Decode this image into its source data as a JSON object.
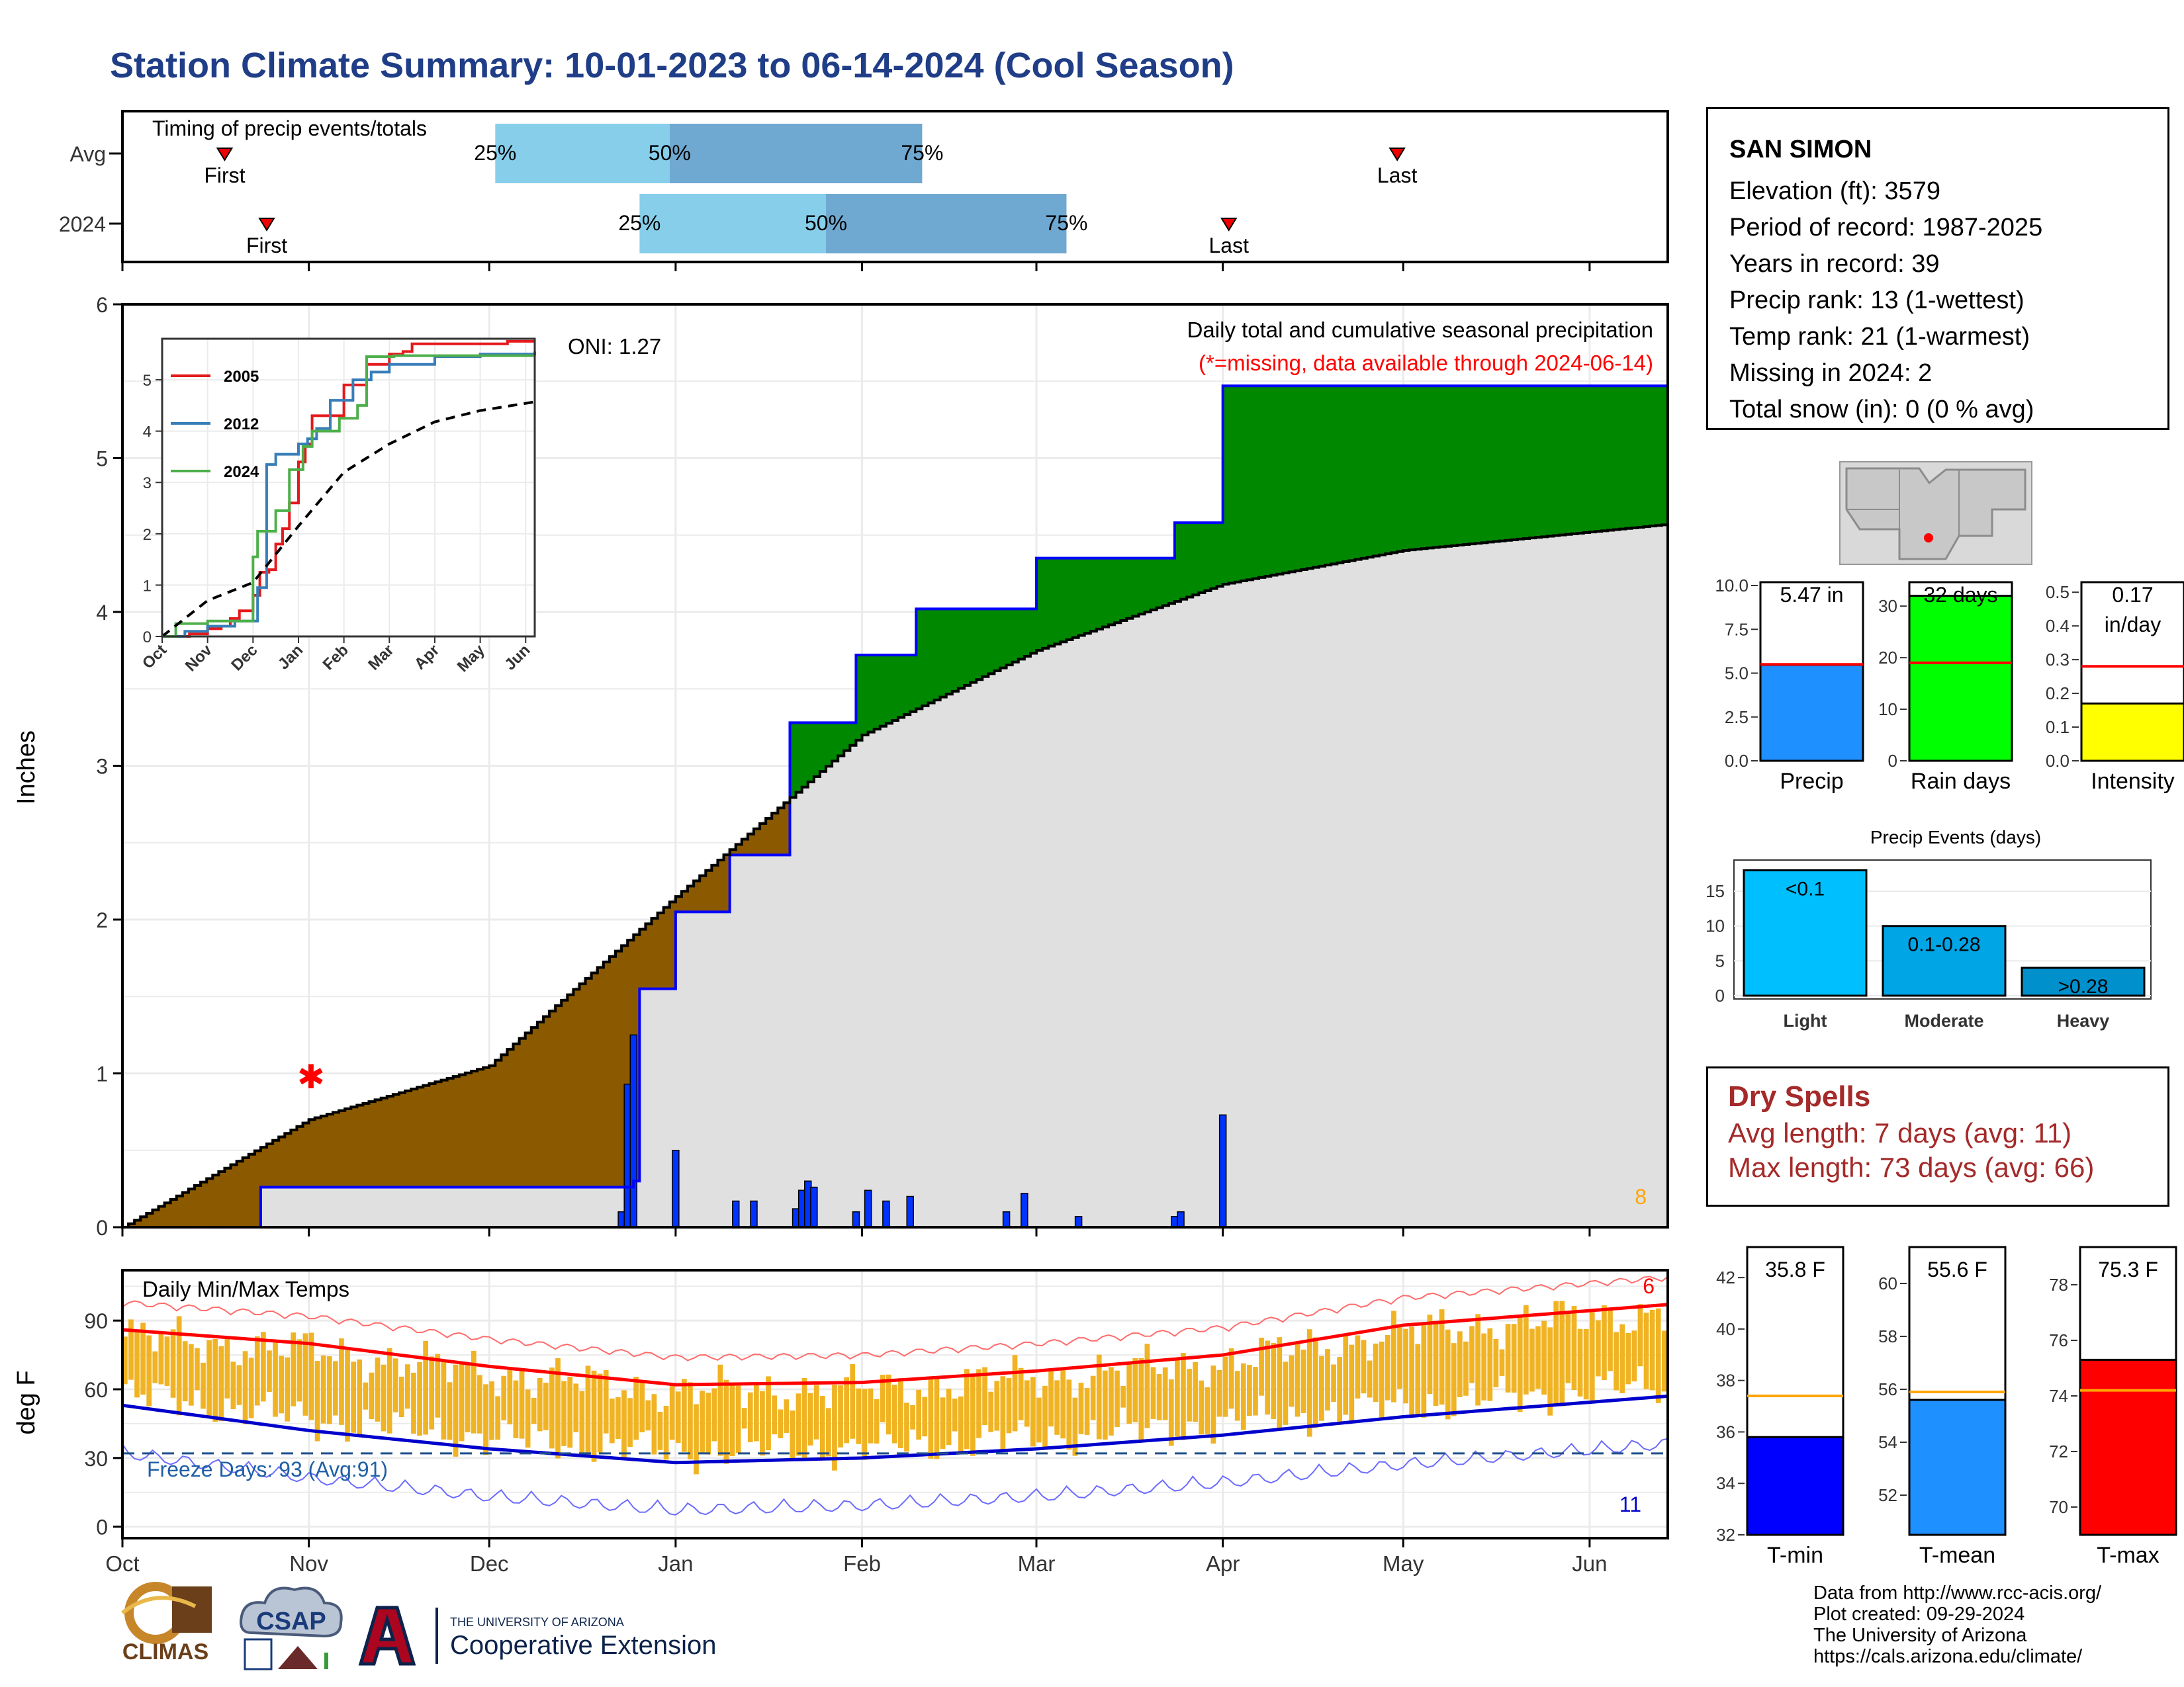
{
  "title": "Station Climate Summary: 10-01-2023 to 06-14-2024 (Cool Season)",
  "timing": {
    "label": "Timing of precip events/totals",
    "rows": [
      {
        "name": "Avg",
        "first": "2023-10-18",
        "last": "2024-04-30",
        "p25": "2023-12-02",
        "p50": "2023-12-31",
        "p75": "2024-02-11"
      },
      {
        "name": "2024",
        "first": "2023-10-25",
        "last": "2024-04-02",
        "p25": "2023-12-26",
        "p50": "2024-01-26",
        "p75": "2024-03-06"
      }
    ],
    "first_label": "First",
    "last_label": "Last",
    "pct_labels": [
      "25%",
      "50%",
      "75%"
    ]
  },
  "main": {
    "ylabel": "Inches",
    "title": "Daily total and cumulative seasonal precipitation",
    "missing_note": "(*=missing, data available through 2024-06-14)",
    "oni": "ONI: 1.27",
    "count_label": "8",
    "colors": {
      "above": "#008800",
      "below": "#8b5a00",
      "area": "#e0e0e0",
      "obs_line": "#0000ff",
      "avg_line": "#000000",
      "bars": "#0033ff"
    }
  },
  "inset": {
    "legend": [
      "2005",
      "2012",
      "2024"
    ],
    "colors": [
      "#e41a1c",
      "#377eb8",
      "#4daf4a"
    ]
  },
  "temps": {
    "ylabel": "deg F",
    "title": "Daily Min/Max Temps",
    "freeze": "Freeze Days: 93 (Avg:91)",
    "count_hi": "6",
    "count_lo": "11"
  },
  "x_axis": {
    "months": [
      "Oct",
      "Nov",
      "Dec",
      "Jan",
      "Feb",
      "Mar",
      "Apr",
      "May",
      "Jun"
    ]
  },
  "inset_axis": {
    "months": [
      "Oct",
      "Nov",
      "Dec",
      "Jan",
      "Feb",
      "Mar",
      "Apr",
      "May",
      "Jun"
    ]
  },
  "station": {
    "name": "SAN SIMON",
    "lines": [
      "Elevation (ft): 3579",
      "Period of record: 1987-2025",
      "Years in record: 39",
      "Precip rank: 13 (1-wettest)",
      "Temp rank: 21 (1-warmest)",
      "Missing in 2024: 2",
      "Total snow (in): 0 (0 % avg)"
    ]
  },
  "summary_bars": [
    {
      "label": "Precip",
      "value": 5.47,
      "avg": 5.5,
      "ymax": 10,
      "ticks": [
        "0.0",
        "2.5",
        "5.0",
        "7.5",
        "10.0"
      ],
      "text": "5.47 in",
      "color": "#1e90ff"
    },
    {
      "label": "Rain days",
      "value": 32,
      "avg": 19,
      "ymax": 34,
      "ticks": [
        "0",
        "10",
        "20",
        "30"
      ],
      "text": "32 days",
      "color": "#00ff00"
    },
    {
      "label": "Intensity",
      "value": 0.17,
      "avg": 0.28,
      "ymax": 0.52,
      "ticks": [
        "0.0",
        "0.1",
        "0.2",
        "0.3",
        "0.4",
        "0.5"
      ],
      "text": "0.17",
      "text2": "in/day",
      "color": "#ffff00"
    }
  ],
  "events": {
    "title": "Precip Events (days)",
    "categories": [
      "Light",
      "Moderate",
      "Heavy"
    ],
    "values": [
      18,
      10,
      4
    ],
    "labels": [
      "<0.1",
      "0.1-0.28",
      ">0.28"
    ],
    "colors": [
      "#00bfff",
      "#00a5e6",
      "#0090cc"
    ],
    "ticks": [
      "0",
      "5",
      "10",
      "15"
    ]
  },
  "dry": {
    "title": "Dry Spells",
    "avg": "Avg length: 7 days (avg: 11)",
    "max": "Max length: 73 days (avg: 66)"
  },
  "temp_bars": [
    {
      "label": "T-min",
      "value": 35.8,
      "avg": 37.4,
      "ymin": 32,
      "ymax": 42.8,
      "ticks": [
        "32",
        "34",
        "36",
        "38",
        "40",
        "42"
      ],
      "text": "35.8 F",
      "color": "#0000ff"
    },
    {
      "label": "T-mean",
      "value": 55.6,
      "avg": 55.9,
      "ymin": 50.5,
      "ymax": 61,
      "ticks": [
        "52",
        "54",
        "56",
        "58",
        "60"
      ],
      "text": "55.6 F",
      "color": "#1e90ff"
    },
    {
      "label": "T-max",
      "value": 75.3,
      "avg": 74.2,
      "ymin": 69,
      "ymax": 79,
      "ticks": [
        "70",
        "72",
        "74",
        "76",
        "78"
      ],
      "text": "75.3 F",
      "color": "#ff0000"
    }
  ],
  "credits": [
    "Data from http://www.rcc-acis.org/",
    "Plot created: 09-29-2024",
    "The University of Arizona",
    "https://cals.arizona.edu/climate/"
  ],
  "logos": {
    "climas": "CLIMAS",
    "csap": "CSAP",
    "ua_top": "THE UNIVERSITY OF ARIZONA",
    "ua_bottom": "Cooperative Extension"
  },
  "chart_data": [
    {
      "type": "area",
      "title": "Daily total and cumulative seasonal precipitation",
      "ylabel": "Inches",
      "ylim": [
        0,
        6
      ],
      "x_range": [
        "2023-10-01",
        "2024-06-14"
      ],
      "series": [
        {
          "name": "2024",
          "x": [
            "2023-10-01",
            "2023-10-24",
            "2023-12-25",
            "2023-12-26",
            "2024-01-01",
            "2024-01-10",
            "2024-01-20",
            "2024-01-31",
            "2024-02-10",
            "2024-03-01",
            "2024-03-24",
            "2024-04-01",
            "2024-06-14"
          ],
          "values": [
            0,
            0.26,
            0.3,
            1.55,
            2.05,
            2.42,
            3.28,
            3.72,
            4.02,
            4.35,
            4.58,
            5.47,
            5.47
          ]
        },
        {
          "x": [
            "2023-10-01",
            "2023-11-01",
            "2023-12-01",
            "2024-01-01",
            "2024-02-01",
            "2024-03-01",
            "2024-04-01",
            "2024-05-01",
            "2024-06-14"
          ],
          "values": [
            0,
            0.7,
            1.05,
            2.15,
            3.2,
            3.75,
            4.18,
            4.4,
            4.57
          ]
        }
      ],
      "daily_bars": {
        "x": [
          "2023-12-23",
          "2023-12-24",
          "2023-12-25",
          "2024-01-01",
          "2024-01-11",
          "2024-01-14",
          "2024-01-21",
          "2024-01-22",
          "2024-01-23",
          "2024-01-24",
          "2024-01-31",
          "2024-02-02",
          "2024-02-05",
          "2024-02-09",
          "2024-02-25",
          "2024-02-28",
          "2024-03-08",
          "2024-03-24",
          "2024-03-25",
          "2024-04-01"
        ],
        "values": [
          0.1,
          0.93,
          1.25,
          0.5,
          0.17,
          0.17,
          0.12,
          0.24,
          0.3,
          0.26,
          0.1,
          0.24,
          0.17,
          0.2,
          0.1,
          0.22,
          0.07,
          0.07,
          0.1,
          0.73
        ]
      }
    },
    {
      "type": "line",
      "title": "",
      "ylim": [
        0,
        5.8
      ],
      "x_range": [
        "Oct",
        "Jun"
      ],
      "series": [
        {
          "name": "2005",
          "x": [
            0,
            0.3,
            0.6,
            1.0,
            1.3,
            1.5,
            1.7,
            2.0,
            2.15,
            2.35,
            2.5,
            2.65,
            2.8,
            3.0,
            3.15,
            3.3,
            4.0,
            4.5,
            5.0,
            5.3,
            5.5,
            6.4,
            7.6,
            8.2
          ],
          "values": [
            0,
            0,
            0.05,
            0.15,
            0.2,
            0.35,
            0.5,
            0.8,
            1.25,
            1.3,
            1.8,
            2.1,
            2.6,
            3.4,
            3.75,
            4.3,
            4.9,
            5.3,
            5.5,
            5.55,
            5.7,
            5.7,
            5.75,
            5.75
          ]
        },
        {
          "name": "2012",
          "x": [
            0,
            0.5,
            1.0,
            1.6,
            2.1,
            2.3,
            2.5,
            2.8,
            3.0,
            3.2,
            3.4,
            3.7,
            4.2,
            4.6,
            5.0,
            6.0,
            7.0,
            8.2
          ],
          "values": [
            0,
            0.1,
            0.2,
            0.3,
            0.95,
            3.35,
            3.55,
            3.55,
            3.75,
            3.85,
            4.05,
            4.6,
            5.0,
            5.15,
            5.3,
            5.45,
            5.5,
            5.55
          ]
        },
        {
          "name": "2024",
          "x": [
            0,
            0.3,
            1.0,
            1.5,
            2.0,
            2.1,
            2.5,
            2.8,
            3.1,
            3.3,
            3.9,
            4.3,
            4.5,
            5.1,
            6.0,
            7.0,
            8.2
          ],
          "values": [
            0,
            0.25,
            0.3,
            0.3,
            1.55,
            2.05,
            2.45,
            3.25,
            3.7,
            4.0,
            4.25,
            4.5,
            5.45,
            5.47,
            5.47,
            5.47,
            5.47
          ]
        },
        {
          "x": [
            0,
            1,
            2,
            3,
            4,
            5,
            6,
            7,
            8.2
          ],
          "values": [
            0,
            0.7,
            1.05,
            2.15,
            3.2,
            3.75,
            4.18,
            4.4,
            4.57
          ]
        }
      ]
    },
    {
      "type": "bar",
      "title": "Daily Min/Max Temps",
      "ylabel": "deg F",
      "ylim": [
        -5,
        112
      ],
      "x_range": [
        "2023-10-01",
        "2024-06-14"
      ],
      "series": [
        {
          "x": [
            "2023-10-01",
            "2023-11-01",
            "2023-12-01",
            "2024-01-01",
            "2024-02-01",
            "2024-03-01",
            "2024-04-01",
            "2024-05-01",
            "2024-06-14"
          ],
          "values": [
            86,
            80,
            70,
            62,
            63,
            68,
            75,
            88,
            97
          ]
        },
        {
          "x": [
            "2023-10-01",
            "2023-11-01",
            "2023-12-01",
            "2024-01-01",
            "2024-02-01",
            "2024-03-01",
            "2024-04-01",
            "2024-05-01",
            "2024-06-14"
          ],
          "values": [
            53,
            42,
            34,
            28,
            30,
            34,
            40,
            48,
            57
          ]
        }
      ],
      "freeze_line": 32
    }
  ]
}
